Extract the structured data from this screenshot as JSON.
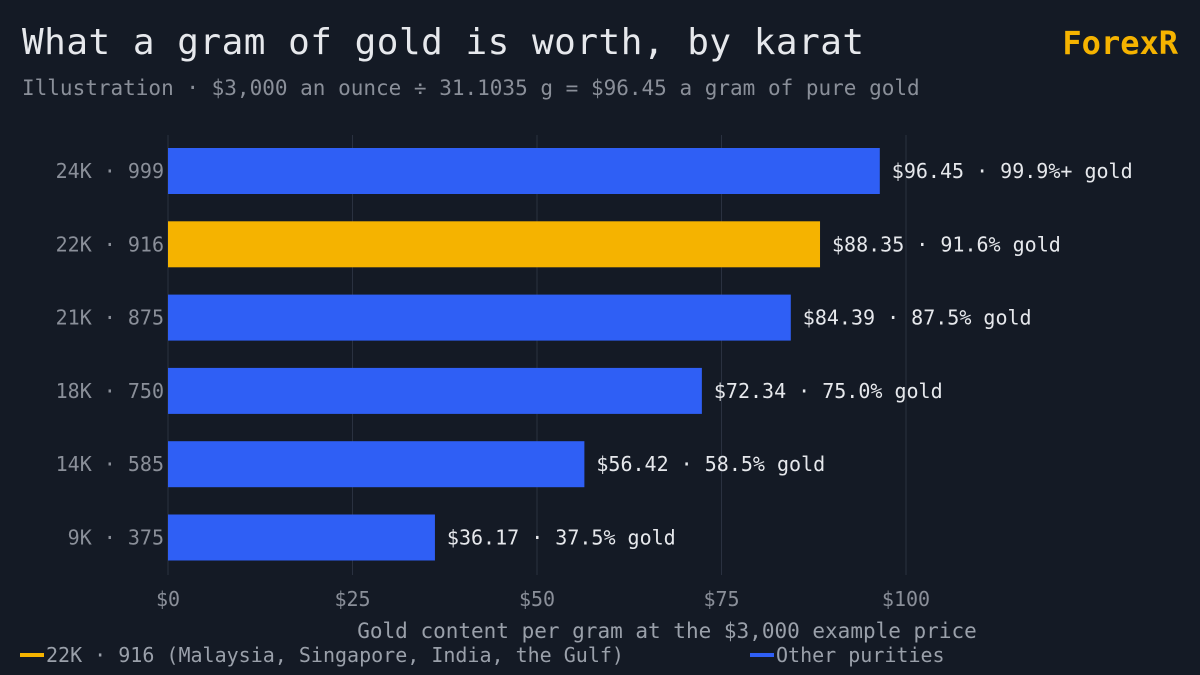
{
  "header": {
    "title": "What a gram of gold is worth, by karat",
    "subtitle": "Illustration · $3,000 an ounce ÷ 31.1035 g = $96.45 a gram of pure gold",
    "brand": "ForexR"
  },
  "colors": {
    "background": "#141a25",
    "highlight": "#f5b300",
    "other": "#2f5ff5",
    "text": "#e6e8ec",
    "muted": "#8a8f99",
    "grid": "#2a3140"
  },
  "chart_data": {
    "type": "bar",
    "orientation": "horizontal",
    "categories": [
      "24K · 999",
      "22K · 916",
      "21K · 875",
      "18K · 750",
      "14K · 585",
      "9K · 375"
    ],
    "values": [
      96.45,
      88.35,
      84.39,
      72.34,
      56.42,
      36.17
    ],
    "purity_labels": [
      "99.9%+ gold",
      "91.6% gold",
      "87.5% gold",
      "75.0% gold",
      "58.5% gold",
      "37.5% gold"
    ],
    "value_labels": [
      "$96.45",
      "$88.35",
      "$84.39",
      "$72.34",
      "$56.42",
      "$36.17"
    ],
    "highlight_index": 1,
    "xlim": [
      0,
      100
    ],
    "xticks": [
      0,
      25,
      50,
      75,
      100
    ],
    "xtick_labels": [
      "$0",
      "$25",
      "$50",
      "$75",
      "$100"
    ],
    "xlabel": "Gold content per gram at the $3,000 example price",
    "grid": "vertical",
    "legend": {
      "placement": "bottom",
      "items": [
        {
          "label": "22K · 916 (Malaysia, Singapore, India, the Gulf)",
          "color": "#f5b300"
        },
        {
          "label": "Other purities",
          "color": "#2f5ff5"
        }
      ]
    }
  }
}
